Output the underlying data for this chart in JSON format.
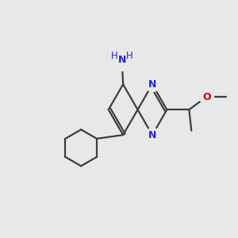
{
  "background_color": "#e8e8e8",
  "bond_color": "#3d3d3d",
  "atom_colors": {
    "N": "#2424cc",
    "O": "#cc0000",
    "C": "#3d3d3d"
  },
  "figsize": [
    3.0,
    3.0
  ],
  "dpi": 100,
  "lw": 1.6
}
